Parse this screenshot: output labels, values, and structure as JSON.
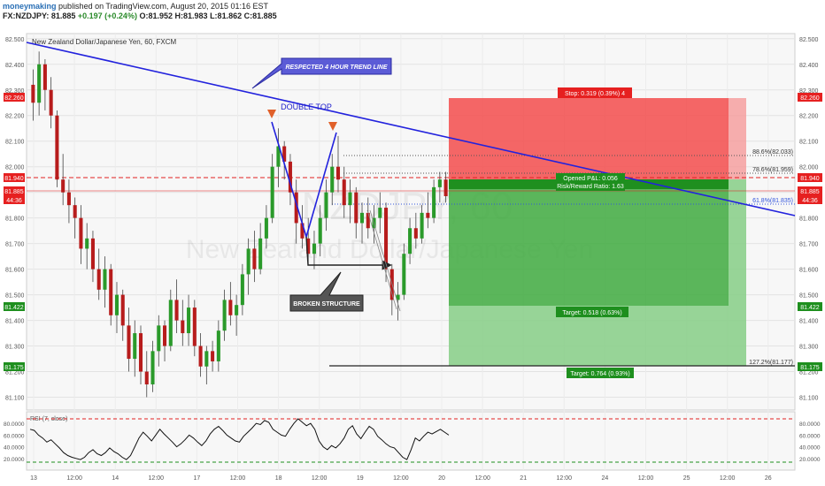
{
  "header": {
    "user": "moneymaking",
    "published_text": "published on TradingView.com, August 20, 2015 01:16 EST",
    "symbol": "FX:NZDJPY",
    "last": "81.885",
    "change": "+0.197 (+0.24%)",
    "ohlc_o": "O:81.952",
    "ohlc_h": "H:81.983",
    "ohlc_l": "L:81.862",
    "ohlc_c": "C:81.885"
  },
  "chart_data": {
    "type": "candlestick",
    "title": "New Zealand Dollar/Japanese Yen, 60, FXCM",
    "watermark_symbol": "NZDJPY, 60",
    "watermark_name": "New Zealand Dollar/Japanese Yen",
    "y_ticks": [
      "82.500",
      "82.400",
      "82.300",
      "82.200",
      "82.100",
      "82.000",
      "81.900",
      "81.800",
      "81.700",
      "81.600",
      "81.500",
      "81.400",
      "81.300",
      "81.200",
      "81.100"
    ],
    "ylim": [
      81.05,
      82.52
    ],
    "x_ticks": [
      "13",
      "12:00",
      "14",
      "12:00",
      "17",
      "12:00",
      "18",
      "12:00",
      "19",
      "12:00",
      "20",
      "12:00",
      "21",
      "12:00",
      "24",
      "12:00",
      "25",
      "12:00",
      "26"
    ],
    "price_badges": {
      "stop": "82.260",
      "entry": "81.940",
      "last": "81.885",
      "countdown": "44:36",
      "target": "81.422",
      "target2": "81.175"
    },
    "annotations": {
      "trend_line": "RESPECTED 4 HOUR TREND LINE",
      "double_top": "DOUBLE TOP",
      "broken_structure": "BROKEN STRUCTURE",
      "stop_label": "Stop: 0.319 (0.39%) 4",
      "open_pl": "Opened P&L: 0.056",
      "risk_reward": "Risk/Reward Ratio: 1.63",
      "target_label": "Target: 0.518 (0.63%)",
      "target2_label": "Target: 0.764 (0.93%)",
      "fib_886": "88.6%(82.033)",
      "fib_786": "78.6%(81.959)",
      "fib_618": "61.8%(81.835)",
      "fib_1272": "127.2%(81.177)"
    },
    "rsi": {
      "label": "RSI (7, close)",
      "y_ticks": [
        "80.0000",
        "60.0000",
        "40.0000",
        "20.0000"
      ],
      "upper": 80,
      "lower": 20,
      "values": [
        70,
        68,
        60,
        55,
        48,
        52,
        45,
        38,
        30,
        25,
        22,
        20,
        18,
        22,
        30,
        35,
        28,
        25,
        30,
        38,
        32,
        28,
        22,
        18,
        25,
        40,
        55,
        65,
        58,
        50,
        60,
        70,
        62,
        55,
        48,
        40,
        45,
        52,
        60,
        55,
        48,
        42,
        50,
        62,
        70,
        75,
        68,
        60,
        55,
        50,
        48,
        58,
        65,
        72,
        80,
        78,
        85,
        82,
        70,
        65,
        60,
        58,
        70,
        80,
        88,
        82,
        76,
        80,
        70,
        50,
        40,
        35,
        42,
        38,
        45,
        55,
        70,
        76,
        62,
        54,
        65,
        75,
        70,
        58,
        52,
        45,
        40,
        38,
        30,
        22,
        18,
        35,
        55,
        50,
        58,
        65,
        62,
        66,
        70,
        65,
        60
      ]
    },
    "candles": [
      [
        82.32,
        82.38,
        82.18,
        82.25
      ],
      [
        82.25,
        82.45,
        82.2,
        82.4
      ],
      [
        82.4,
        82.42,
        82.22,
        82.3
      ],
      [
        82.3,
        82.35,
        82.15,
        82.2
      ],
      [
        82.2,
        82.22,
        81.92,
        81.95
      ],
      [
        81.95,
        82.05,
        81.85,
        81.9
      ],
      [
        81.9,
        81.95,
        81.78,
        81.85
      ],
      [
        81.85,
        81.88,
        81.72,
        81.8
      ],
      [
        81.8,
        81.85,
        81.62,
        81.68
      ],
      [
        81.68,
        81.78,
        81.6,
        81.72
      ],
      [
        81.72,
        81.75,
        81.55,
        81.6
      ],
      [
        81.6,
        81.68,
        81.48,
        81.52
      ],
      [
        81.52,
        81.65,
        81.45,
        81.6
      ],
      [
        81.6,
        81.62,
        81.38,
        81.42
      ],
      [
        81.42,
        81.55,
        81.35,
        81.5
      ],
      [
        81.5,
        81.52,
        81.32,
        81.38
      ],
      [
        81.38,
        81.45,
        81.2,
        81.25
      ],
      [
        81.25,
        81.4,
        81.18,
        81.35
      ],
      [
        81.35,
        81.38,
        81.15,
        81.2
      ],
      [
        81.2,
        81.28,
        81.1,
        81.15
      ],
      [
        81.15,
        81.32,
        81.12,
        81.28
      ],
      [
        81.28,
        81.42,
        81.22,
        81.38
      ],
      [
        81.38,
        81.4,
        81.24,
        81.3
      ],
      [
        81.3,
        81.52,
        81.28,
        81.48
      ],
      [
        81.48,
        81.56,
        81.35,
        81.4
      ],
      [
        81.4,
        81.48,
        81.3,
        81.35
      ],
      [
        81.35,
        81.5,
        81.3,
        81.45
      ],
      [
        81.45,
        81.48,
        81.26,
        81.3
      ],
      [
        81.3,
        81.35,
        81.18,
        81.22
      ],
      [
        81.22,
        81.3,
        81.15,
        81.28
      ],
      [
        81.28,
        81.32,
        81.2,
        81.24
      ],
      [
        81.24,
        81.4,
        81.2,
        81.36
      ],
      [
        81.36,
        81.52,
        81.32,
        81.48
      ],
      [
        81.48,
        81.55,
        81.38,
        81.42
      ],
      [
        81.42,
        81.5,
        81.34,
        81.46
      ],
      [
        81.46,
        81.62,
        81.42,
        81.58
      ],
      [
        81.58,
        81.72,
        81.5,
        81.68
      ],
      [
        81.68,
        81.75,
        81.55,
        81.6
      ],
      [
        81.6,
        81.78,
        81.58,
        81.72
      ],
      [
        81.72,
        81.85,
        81.68,
        81.8
      ],
      [
        81.8,
        82.05,
        81.78,
        82.0
      ],
      [
        82.0,
        82.15,
        81.92,
        82.08
      ],
      [
        82.08,
        82.1,
        81.95,
        82.02
      ],
      [
        82.02,
        82.05,
        81.85,
        81.9
      ],
      [
        81.9,
        81.95,
        81.7,
        81.78
      ],
      [
        81.78,
        81.85,
        81.68,
        81.72
      ],
      [
        81.72,
        81.8,
        81.62,
        81.66
      ],
      [
        81.66,
        81.75,
        81.6,
        81.7
      ],
      [
        81.7,
        81.85,
        81.65,
        81.8
      ],
      [
        81.8,
        81.95,
        81.75,
        81.9
      ],
      [
        81.9,
        82.05,
        81.85,
        82.0
      ],
      [
        82.0,
        82.12,
        81.9,
        81.95
      ],
      [
        81.95,
        82.0,
        81.8,
        81.85
      ],
      [
        81.85,
        81.95,
        81.78,
        81.9
      ],
      [
        81.9,
        81.92,
        81.72,
        81.78
      ],
      [
        81.78,
        81.86,
        81.7,
        81.82
      ],
      [
        81.82,
        81.88,
        81.72,
        81.76
      ],
      [
        81.76,
        81.85,
        81.7,
        81.8
      ],
      [
        81.8,
        81.9,
        81.74,
        81.84
      ],
      [
        81.84,
        81.86,
        81.55,
        81.6
      ],
      [
        81.6,
        81.62,
        81.42,
        81.48
      ],
      [
        81.48,
        81.55,
        81.4,
        81.5
      ],
      [
        81.5,
        81.7,
        81.48,
        81.66
      ],
      [
        81.66,
        81.8,
        81.62,
        81.76
      ],
      [
        81.76,
        81.82,
        81.68,
        81.72
      ],
      [
        81.72,
        81.85,
        81.7,
        81.82
      ],
      [
        81.82,
        81.9,
        81.76,
        81.8
      ],
      [
        81.8,
        81.95,
        81.78,
        81.92
      ],
      [
        81.92,
        81.98,
        81.86,
        81.95
      ],
      [
        81.95,
        81.98,
        81.86,
        81.885
      ]
    ]
  }
}
